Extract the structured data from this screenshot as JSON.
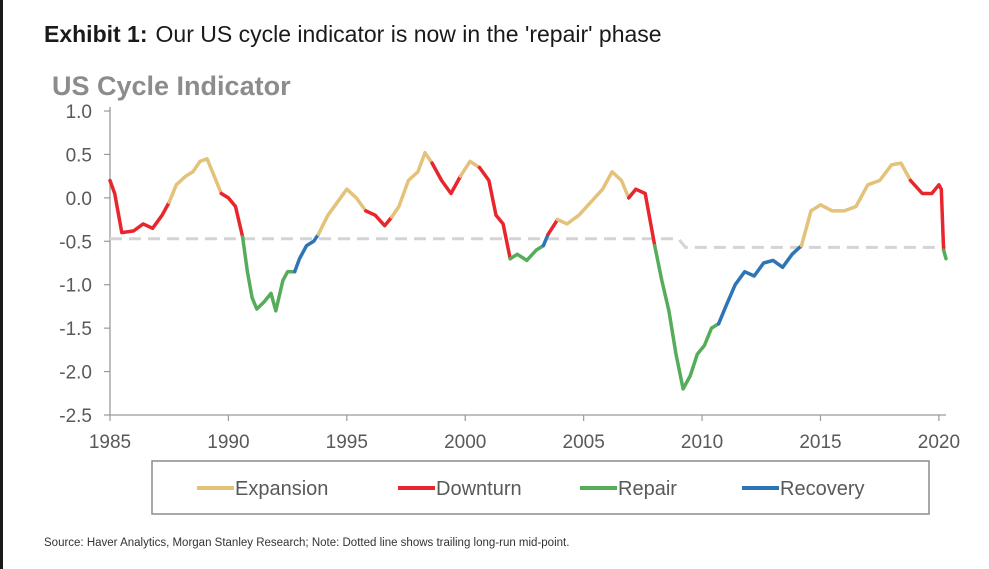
{
  "exhibit": {
    "number": "Exhibit 1:",
    "title": "Our US cycle indicator is now in the 'repair' phase"
  },
  "source_note": "Source: Haver Analytics, Morgan Stanley Research; Note: Dotted line shows trailing long-run mid-point.",
  "colors": {
    "Expansion": "#e3c27a",
    "Downturn": "#e8262d",
    "Repair": "#55ad5a",
    "Recovery": "#2f75b5",
    "midpoint": "#d4d4d4",
    "title": "#8c8c8c",
    "axis": "#9a9a9a",
    "tick_text": "#595959"
  },
  "chart_data": {
    "type": "line",
    "title": "US Cycle Indicator",
    "xlabel": "",
    "ylabel": "",
    "xlim": [
      1985,
      2020.3
    ],
    "ylim": [
      -2.5,
      1.0
    ],
    "x_ticks": [
      "1985",
      "1990",
      "1995",
      "2000",
      "2005",
      "2010",
      "2015",
      "2020"
    ],
    "y_ticks": [
      "1.0",
      "0.5",
      "0.0",
      "-0.5",
      "-1.0",
      "-1.5",
      "-2.0",
      "-2.5"
    ],
    "grid": false,
    "legend_position": "bottom",
    "legend": [
      "Expansion",
      "Downturn",
      "Repair",
      "Recovery"
    ],
    "series": [
      {
        "name": "Downturn",
        "x": [
          1985.0,
          1985.2,
          1985.5,
          1986.0,
          1986.4,
          1986.8,
          1987.2,
          1987.5
        ],
        "y": [
          0.2,
          0.05,
          -0.4,
          -0.38,
          -0.3,
          -0.35,
          -0.2,
          -0.05
        ]
      },
      {
        "name": "Expansion",
        "x": [
          1987.5,
          1987.8,
          1988.2,
          1988.5,
          1988.8,
          1989.1,
          1989.4,
          1989.7
        ],
        "y": [
          -0.05,
          0.15,
          0.25,
          0.3,
          0.42,
          0.45,
          0.25,
          0.05
        ]
      },
      {
        "name": "Downturn",
        "x": [
          1989.7,
          1990.0,
          1990.3,
          1990.6
        ],
        "y": [
          0.05,
          0.0,
          -0.1,
          -0.45
        ]
      },
      {
        "name": "Repair",
        "x": [
          1990.6,
          1990.8,
          1991.0,
          1991.2,
          1991.5,
          1991.8,
          1992.0,
          1992.3,
          1992.5,
          1992.8
        ],
        "y": [
          -0.45,
          -0.85,
          -1.15,
          -1.28,
          -1.2,
          -1.1,
          -1.3,
          -0.95,
          -0.85,
          -0.85
        ]
      },
      {
        "name": "Recovery",
        "x": [
          1992.8,
          1993.0,
          1993.3,
          1993.6,
          1993.8
        ],
        "y": [
          -0.85,
          -0.7,
          -0.55,
          -0.5,
          -0.42
        ]
      },
      {
        "name": "Expansion",
        "x": [
          1993.8,
          1994.2,
          1994.6,
          1995.0,
          1995.4,
          1995.8
        ],
        "y": [
          -0.42,
          -0.2,
          -0.05,
          0.1,
          0.0,
          -0.15
        ]
      },
      {
        "name": "Downturn",
        "x": [
          1995.8,
          1996.2,
          1996.6,
          1996.9
        ],
        "y": [
          -0.15,
          -0.2,
          -0.32,
          -0.22
        ]
      },
      {
        "name": "Expansion",
        "x": [
          1996.9,
          1997.2,
          1997.6,
          1998.0,
          1998.3,
          1998.6
        ],
        "y": [
          -0.22,
          -0.1,
          0.2,
          0.3,
          0.52,
          0.4
        ]
      },
      {
        "name": "Downturn",
        "x": [
          1998.6,
          1999.0,
          1999.4,
          1999.8
        ],
        "y": [
          0.4,
          0.2,
          0.05,
          0.25
        ]
      },
      {
        "name": "Expansion",
        "x": [
          1999.8,
          2000.2,
          2000.6
        ],
        "y": [
          0.25,
          0.42,
          0.35
        ]
      },
      {
        "name": "Downturn",
        "x": [
          2000.6,
          2001.0,
          2001.3,
          2001.6,
          2001.9
        ],
        "y": [
          0.35,
          0.2,
          -0.2,
          -0.3,
          -0.7
        ]
      },
      {
        "name": "Repair",
        "x": [
          2001.9,
          2002.2,
          2002.6,
          2003.0,
          2003.3
        ],
        "y": [
          -0.7,
          -0.65,
          -0.72,
          -0.6,
          -0.55
        ]
      },
      {
        "name": "Recovery",
        "x": [
          2003.3,
          2003.5
        ],
        "y": [
          -0.55,
          -0.42
        ]
      },
      {
        "name": "Downturn",
        "x": [
          2003.5,
          2003.9
        ],
        "y": [
          -0.42,
          -0.25
        ]
      },
      {
        "name": "Expansion",
        "x": [
          2003.9,
          2004.3,
          2004.8,
          2005.3,
          2005.8,
          2006.2,
          2006.6,
          2006.9
        ],
        "y": [
          -0.25,
          -0.3,
          -0.2,
          -0.05,
          0.1,
          0.3,
          0.2,
          0.0
        ]
      },
      {
        "name": "Downturn",
        "x": [
          2006.9,
          2007.2,
          2007.6,
          2008.0
        ],
        "y": [
          0.0,
          0.1,
          0.05,
          -0.55
        ]
      },
      {
        "name": "Repair",
        "x": [
          2008.0,
          2008.3,
          2008.6,
          2008.9,
          2009.2,
          2009.5,
          2009.8,
          2010.1,
          2010.4,
          2010.7
        ],
        "y": [
          -0.55,
          -0.95,
          -1.3,
          -1.8,
          -2.2,
          -2.05,
          -1.8,
          -1.7,
          -1.5,
          -1.45
        ]
      },
      {
        "name": "Recovery",
        "x": [
          2010.7,
          2011.0,
          2011.4,
          2011.8,
          2012.2,
          2012.6,
          2013.0,
          2013.4,
          2013.8,
          2014.2
        ],
        "y": [
          -1.45,
          -1.25,
          -1.0,
          -0.85,
          -0.9,
          -0.75,
          -0.72,
          -0.8,
          -0.65,
          -0.55
        ]
      },
      {
        "name": "Expansion",
        "x": [
          2014.2,
          2014.6,
          2015.0,
          2015.5,
          2016.0,
          2016.5,
          2017.0,
          2017.5,
          2018.0,
          2018.4,
          2018.8
        ],
        "y": [
          -0.55,
          -0.15,
          -0.08,
          -0.15,
          -0.15,
          -0.1,
          0.15,
          0.2,
          0.38,
          0.4,
          0.2
        ]
      },
      {
        "name": "Downturn",
        "x": [
          2018.8,
          2019.3,
          2019.7,
          2020.0,
          2020.1,
          2020.2
        ],
        "y": [
          0.2,
          0.05,
          0.05,
          0.15,
          0.1,
          -0.6
        ]
      },
      {
        "name": "Repair",
        "x": [
          2020.2,
          2020.3
        ],
        "y": [
          -0.6,
          -0.7
        ]
      }
    ],
    "midpoint_line": {
      "x": [
        1985.0,
        2009.0,
        2009.3,
        2020.3
      ],
      "y": [
        -0.47,
        -0.47,
        -0.57,
        -0.57
      ]
    }
  }
}
